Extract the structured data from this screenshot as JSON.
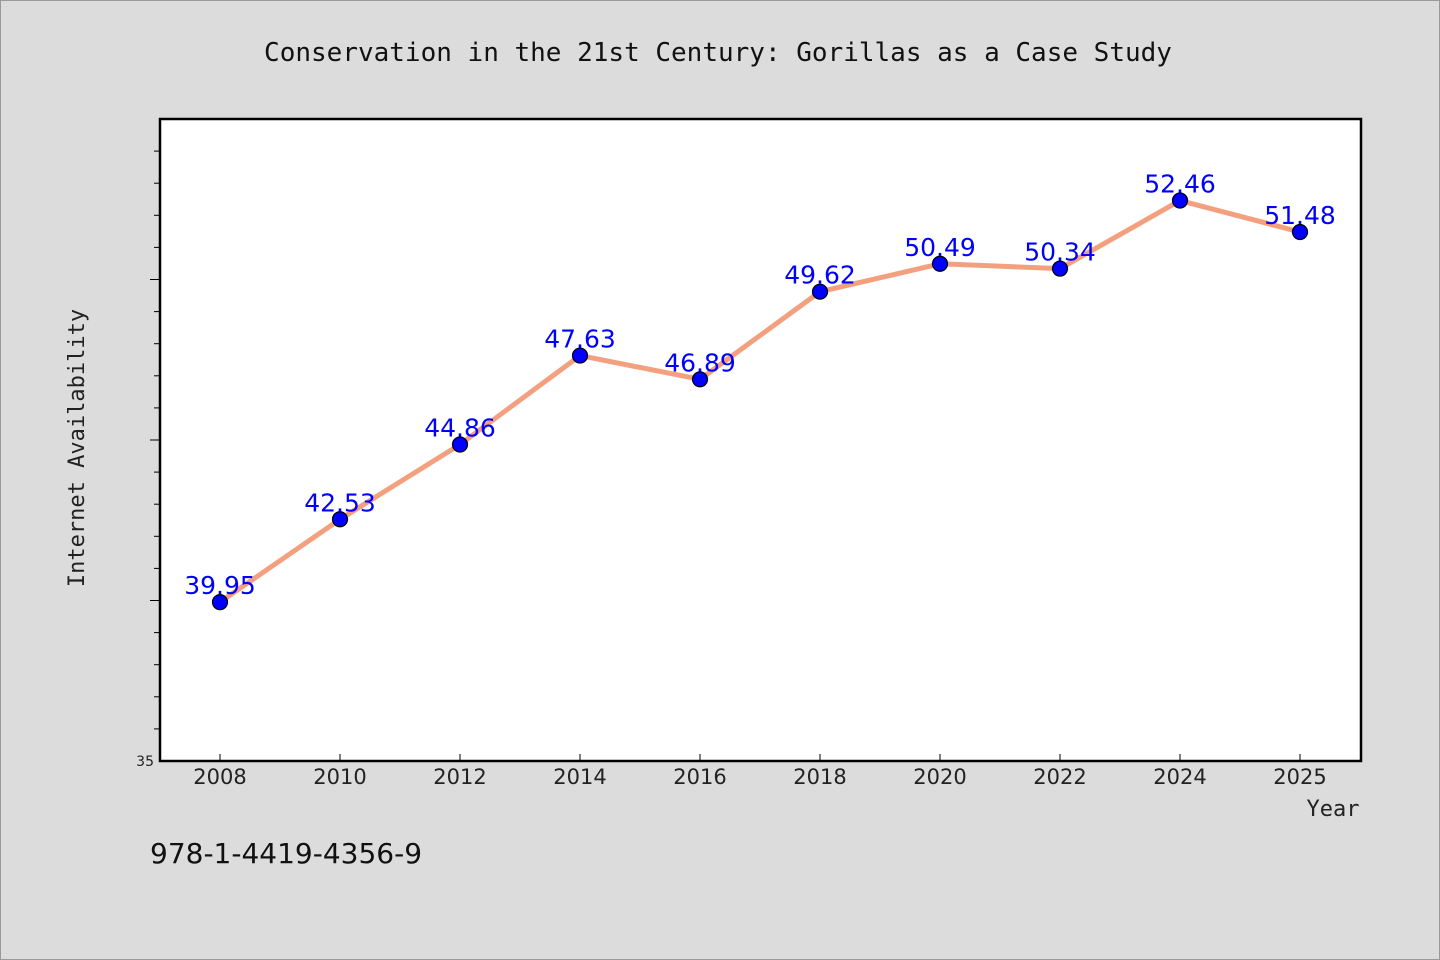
{
  "chart_data": {
    "type": "line",
    "title": "Conservation in the 21st Century: Gorillas as a Case Study",
    "xlabel": "Year",
    "ylabel": "Internet Availability",
    "categories": [
      "2008",
      "2010",
      "2012",
      "2014",
      "2016",
      "2018",
      "2020",
      "2022",
      "2024",
      "2025"
    ],
    "series": [
      {
        "values": [
          39.95,
          42.53,
          44.86,
          47.63,
          46.89,
          49.62,
          50.49,
          50.34,
          52.46,
          51.48
        ],
        "labels": [
          "39.95",
          "42.53",
          "44.86",
          "47.63",
          "46.89",
          "49.62",
          "50.49",
          "50.34",
          "52.46",
          "51.48"
        ]
      }
    ],
    "ylim": [
      35,
      55
    ],
    "y_tick_labels": [
      "35"
    ],
    "grid": false,
    "legend": "none",
    "colors": {
      "line": "#f4a07f",
      "marker": "#0000ff",
      "data_label": "#0000ff",
      "plot_background": "#ffffff",
      "figure_background": "#dcdcdc"
    }
  },
  "footer": {
    "isbn": "978-1-4419-4356-9"
  }
}
